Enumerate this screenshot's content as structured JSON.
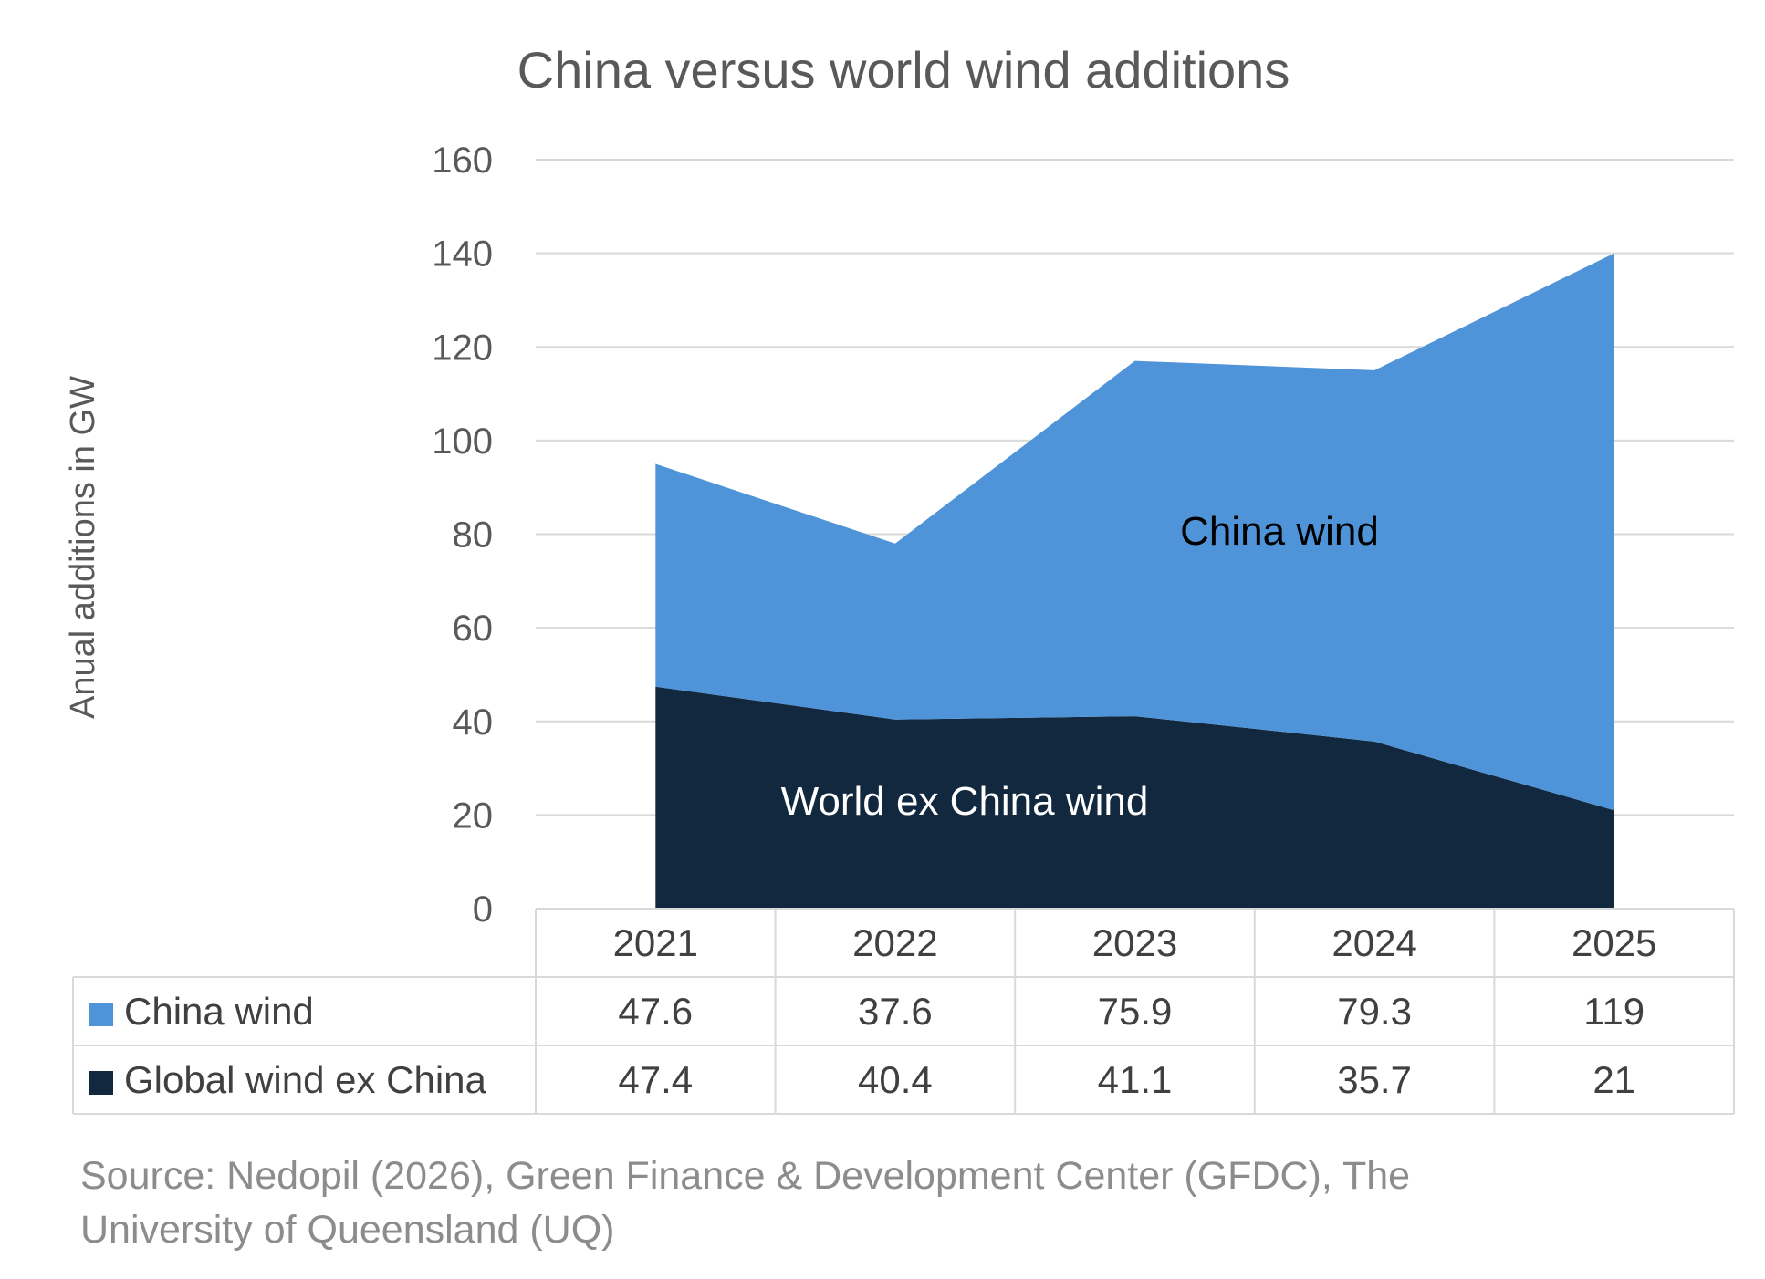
{
  "chart_data": {
    "type": "area",
    "stacked": true,
    "title": "China versus world wind additions",
    "ylabel": "Anual additions in GW",
    "ylim": [
      0,
      160
    ],
    "yticks": [
      0,
      20,
      40,
      60,
      80,
      100,
      120,
      140,
      160
    ],
    "grid": true,
    "categories": [
      "2021",
      "2022",
      "2023",
      "2024",
      "2025"
    ],
    "series": [
      {
        "name": "Global wind ex China",
        "values": [
          47.4,
          40.4,
          41.1,
          35.7,
          21
        ],
        "display": [
          "47.4",
          "40.4",
          "41.1",
          "35.7",
          "21"
        ],
        "color": "#12283f",
        "area_label": "World ex China wind",
        "label_color": "#ffffff"
      },
      {
        "name": "China wind",
        "values": [
          47.6,
          37.6,
          75.9,
          79.3,
          119
        ],
        "display": [
          "47.6",
          "37.6",
          "75.9",
          "79.3",
          "119"
        ],
        "color": "#4f94d8",
        "area_label": "China wind",
        "label_color": "#000000"
      }
    ],
    "data_table_order": [
      1,
      0
    ],
    "source": [
      "Source: Nedopil (2026), Green Finance & Development Center (GFDC), The",
      "University of Queensland (UQ)"
    ]
  }
}
